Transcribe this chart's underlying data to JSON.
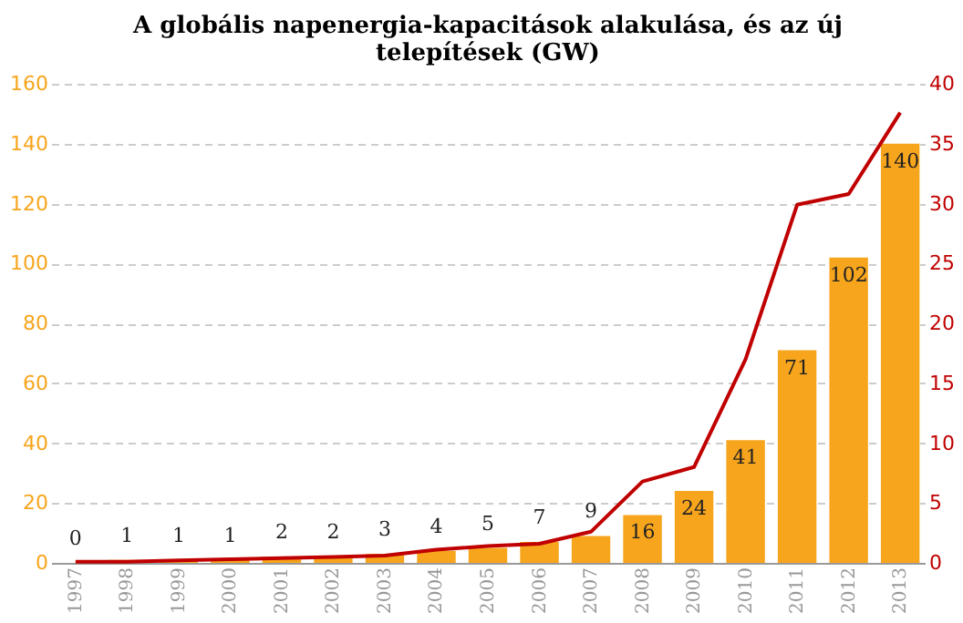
{
  "chart_data": {
    "type": "bar",
    "title": "A globális napenergia-kapacitások alakulása, és az új telepítések (GW)",
    "categories": [
      "1997",
      "1998",
      "1999",
      "2000",
      "2001",
      "2002",
      "2003",
      "2004",
      "2005",
      "2006",
      "2007",
      "2008",
      "2009",
      "2010",
      "2011",
      "2012",
      "2013"
    ],
    "series": [
      {
        "color": "#f7a51c",
        "values": [
          0,
          1,
          1,
          1,
          2,
          2,
          3,
          4,
          5,
          7,
          9,
          16,
          24,
          41,
          71,
          102,
          140
        ],
        "value_labels": [
          "0",
          "1",
          "1",
          "1",
          "2",
          "2",
          "3",
          "4",
          "5",
          "7",
          "9",
          "16",
          "24",
          "41",
          "71",
          "102",
          "140"
        ]
      },
      {
        "type": "line",
        "axis": "y2",
        "color": "#c00000",
        "values": [
          0.1,
          0.1,
          0.2,
          0.3,
          0.4,
          0.5,
          0.6,
          1.1,
          1.4,
          1.6,
          2.6,
          6.8,
          8.0,
          17.0,
          29.9,
          30.8,
          37.6
        ]
      }
    ],
    "ylim": [
      0,
      160
    ],
    "yticks": [
      0,
      20,
      40,
      60,
      80,
      100,
      120,
      140,
      160
    ],
    "y2lim": [
      0,
      40
    ],
    "y2ticks": [
      0,
      5,
      10,
      15,
      20,
      25,
      30,
      35,
      40
    ],
    "grid": "y",
    "marker": "none",
    "line_style": "solid"
  }
}
